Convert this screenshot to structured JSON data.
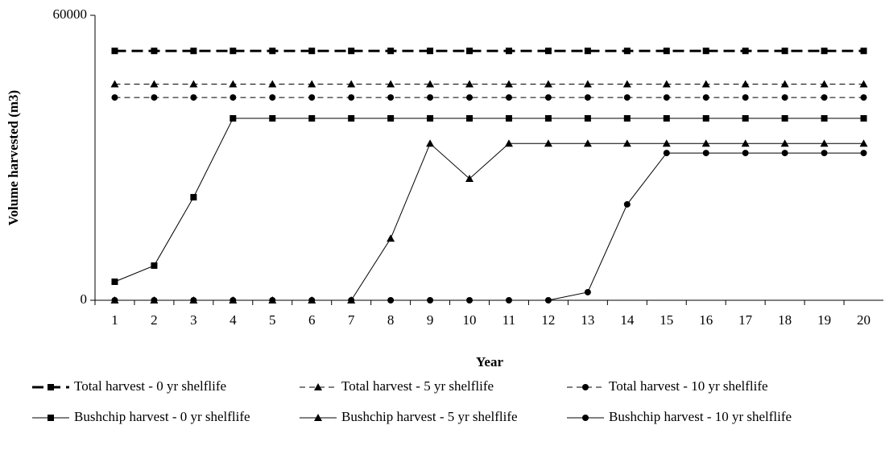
{
  "chart_data": {
    "type": "line",
    "y_label": "Volume harvested (m3)",
    "x_label": "Year",
    "categories": [
      "1",
      "2",
      "3",
      "4",
      "5",
      "6",
      "7",
      "8",
      "9",
      "10",
      "11",
      "12",
      "13",
      "14",
      "15",
      "16",
      "17",
      "18",
      "19",
      "20"
    ],
    "ylim": [
      0,
      60000
    ],
    "yticks": [
      0,
      60000
    ],
    "series": [
      {
        "name": "Total harvest - 0 yr shelflife",
        "color": "#000000",
        "line_style": "dashed",
        "line_width": 3,
        "marker": "square",
        "values": [
          52500,
          52500,
          52500,
          52500,
          52500,
          52500,
          52500,
          52500,
          52500,
          52500,
          52500,
          52500,
          52500,
          52500,
          52500,
          52500,
          52500,
          52500,
          52500,
          52500
        ]
      },
      {
        "name": "Total harvest - 5 yr shelflife",
        "color": "#000000",
        "line_style": "dashed",
        "line_width": 1,
        "marker": "triangle",
        "values": [
          45500,
          45500,
          45500,
          45500,
          45500,
          45500,
          45500,
          45500,
          45500,
          45500,
          45500,
          45500,
          45500,
          45500,
          45500,
          45500,
          45500,
          45500,
          45500,
          45500
        ]
      },
      {
        "name": "Total harvest - 10 yr shelflife",
        "color": "#000000",
        "line_style": "dashed",
        "line_width": 1,
        "marker": "circle",
        "values": [
          42700,
          42700,
          42700,
          42700,
          42700,
          42700,
          42700,
          42700,
          42700,
          42700,
          42700,
          42700,
          42700,
          42700,
          42700,
          42700,
          42700,
          42700,
          42700,
          42700
        ]
      },
      {
        "name": "Bushchip harvest - 0 yr shelflife",
        "color": "#000000",
        "line_style": "solid",
        "line_width": 1,
        "marker": "square",
        "values": [
          3900,
          7300,
          21700,
          38300,
          38300,
          38300,
          38300,
          38300,
          38300,
          38300,
          38300,
          38300,
          38300,
          38300,
          38300,
          38300,
          38300,
          38300,
          38300,
          38300
        ]
      },
      {
        "name": "Bushchip harvest - 5 yr shelflife",
        "color": "#000000",
        "line_style": "solid",
        "line_width": 1,
        "marker": "triangle",
        "values": [
          0,
          0,
          0,
          0,
          0,
          0,
          0,
          13000,
          33000,
          25600,
          33000,
          33000,
          33000,
          33000,
          33000,
          33000,
          33000,
          33000,
          33000,
          33000
        ]
      },
      {
        "name": "Bushchip harvest - 10 yr shelflife",
        "color": "#000000",
        "line_style": "solid",
        "line_width": 1,
        "marker": "circle",
        "values": [
          0,
          0,
          0,
          0,
          0,
          0,
          0,
          0,
          0,
          0,
          0,
          0,
          1700,
          20200,
          31000,
          31000,
          31000,
          31000,
          31000,
          31000
        ]
      }
    ]
  }
}
